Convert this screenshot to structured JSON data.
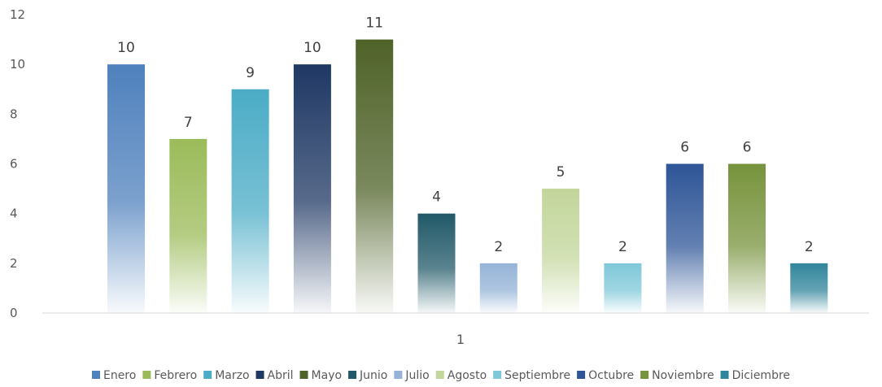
{
  "chart_data": {
    "type": "bar",
    "categories": [
      "1"
    ],
    "ylim": [
      0,
      12
    ],
    "yticks": [
      0,
      2,
      4,
      6,
      8,
      10,
      12
    ],
    "grid": false,
    "legend": "bottom",
    "data_labels": true,
    "series": [
      {
        "name": "Enero",
        "values": [
          10
        ],
        "color": "#4f81bd"
      },
      {
        "name": "Febrero",
        "values": [
          7
        ],
        "color": "#9bbb59"
      },
      {
        "name": "Marzo",
        "values": [
          9
        ],
        "color": "#4bacc6"
      },
      {
        "name": "Abril",
        "values": [
          10
        ],
        "color": "#1f3864"
      },
      {
        "name": "Mayo",
        "values": [
          11
        ],
        "color": "#4f6228"
      },
      {
        "name": "Junio",
        "values": [
          4
        ],
        "color": "#215968"
      },
      {
        "name": "Julio",
        "values": [
          2
        ],
        "color": "#95b3d7"
      },
      {
        "name": "Agosto",
        "values": [
          5
        ],
        "color": "#c3d69b"
      },
      {
        "name": "Septiembre",
        "values": [
          2
        ],
        "color": "#7fc8d9"
      },
      {
        "name": "Octubre",
        "values": [
          6
        ],
        "color": "#2e5597"
      },
      {
        "name": "Noviembre",
        "values": [
          6
        ],
        "color": "#77933c"
      },
      {
        "name": "Diciembre",
        "values": [
          2
        ],
        "color": "#31859b"
      }
    ]
  }
}
